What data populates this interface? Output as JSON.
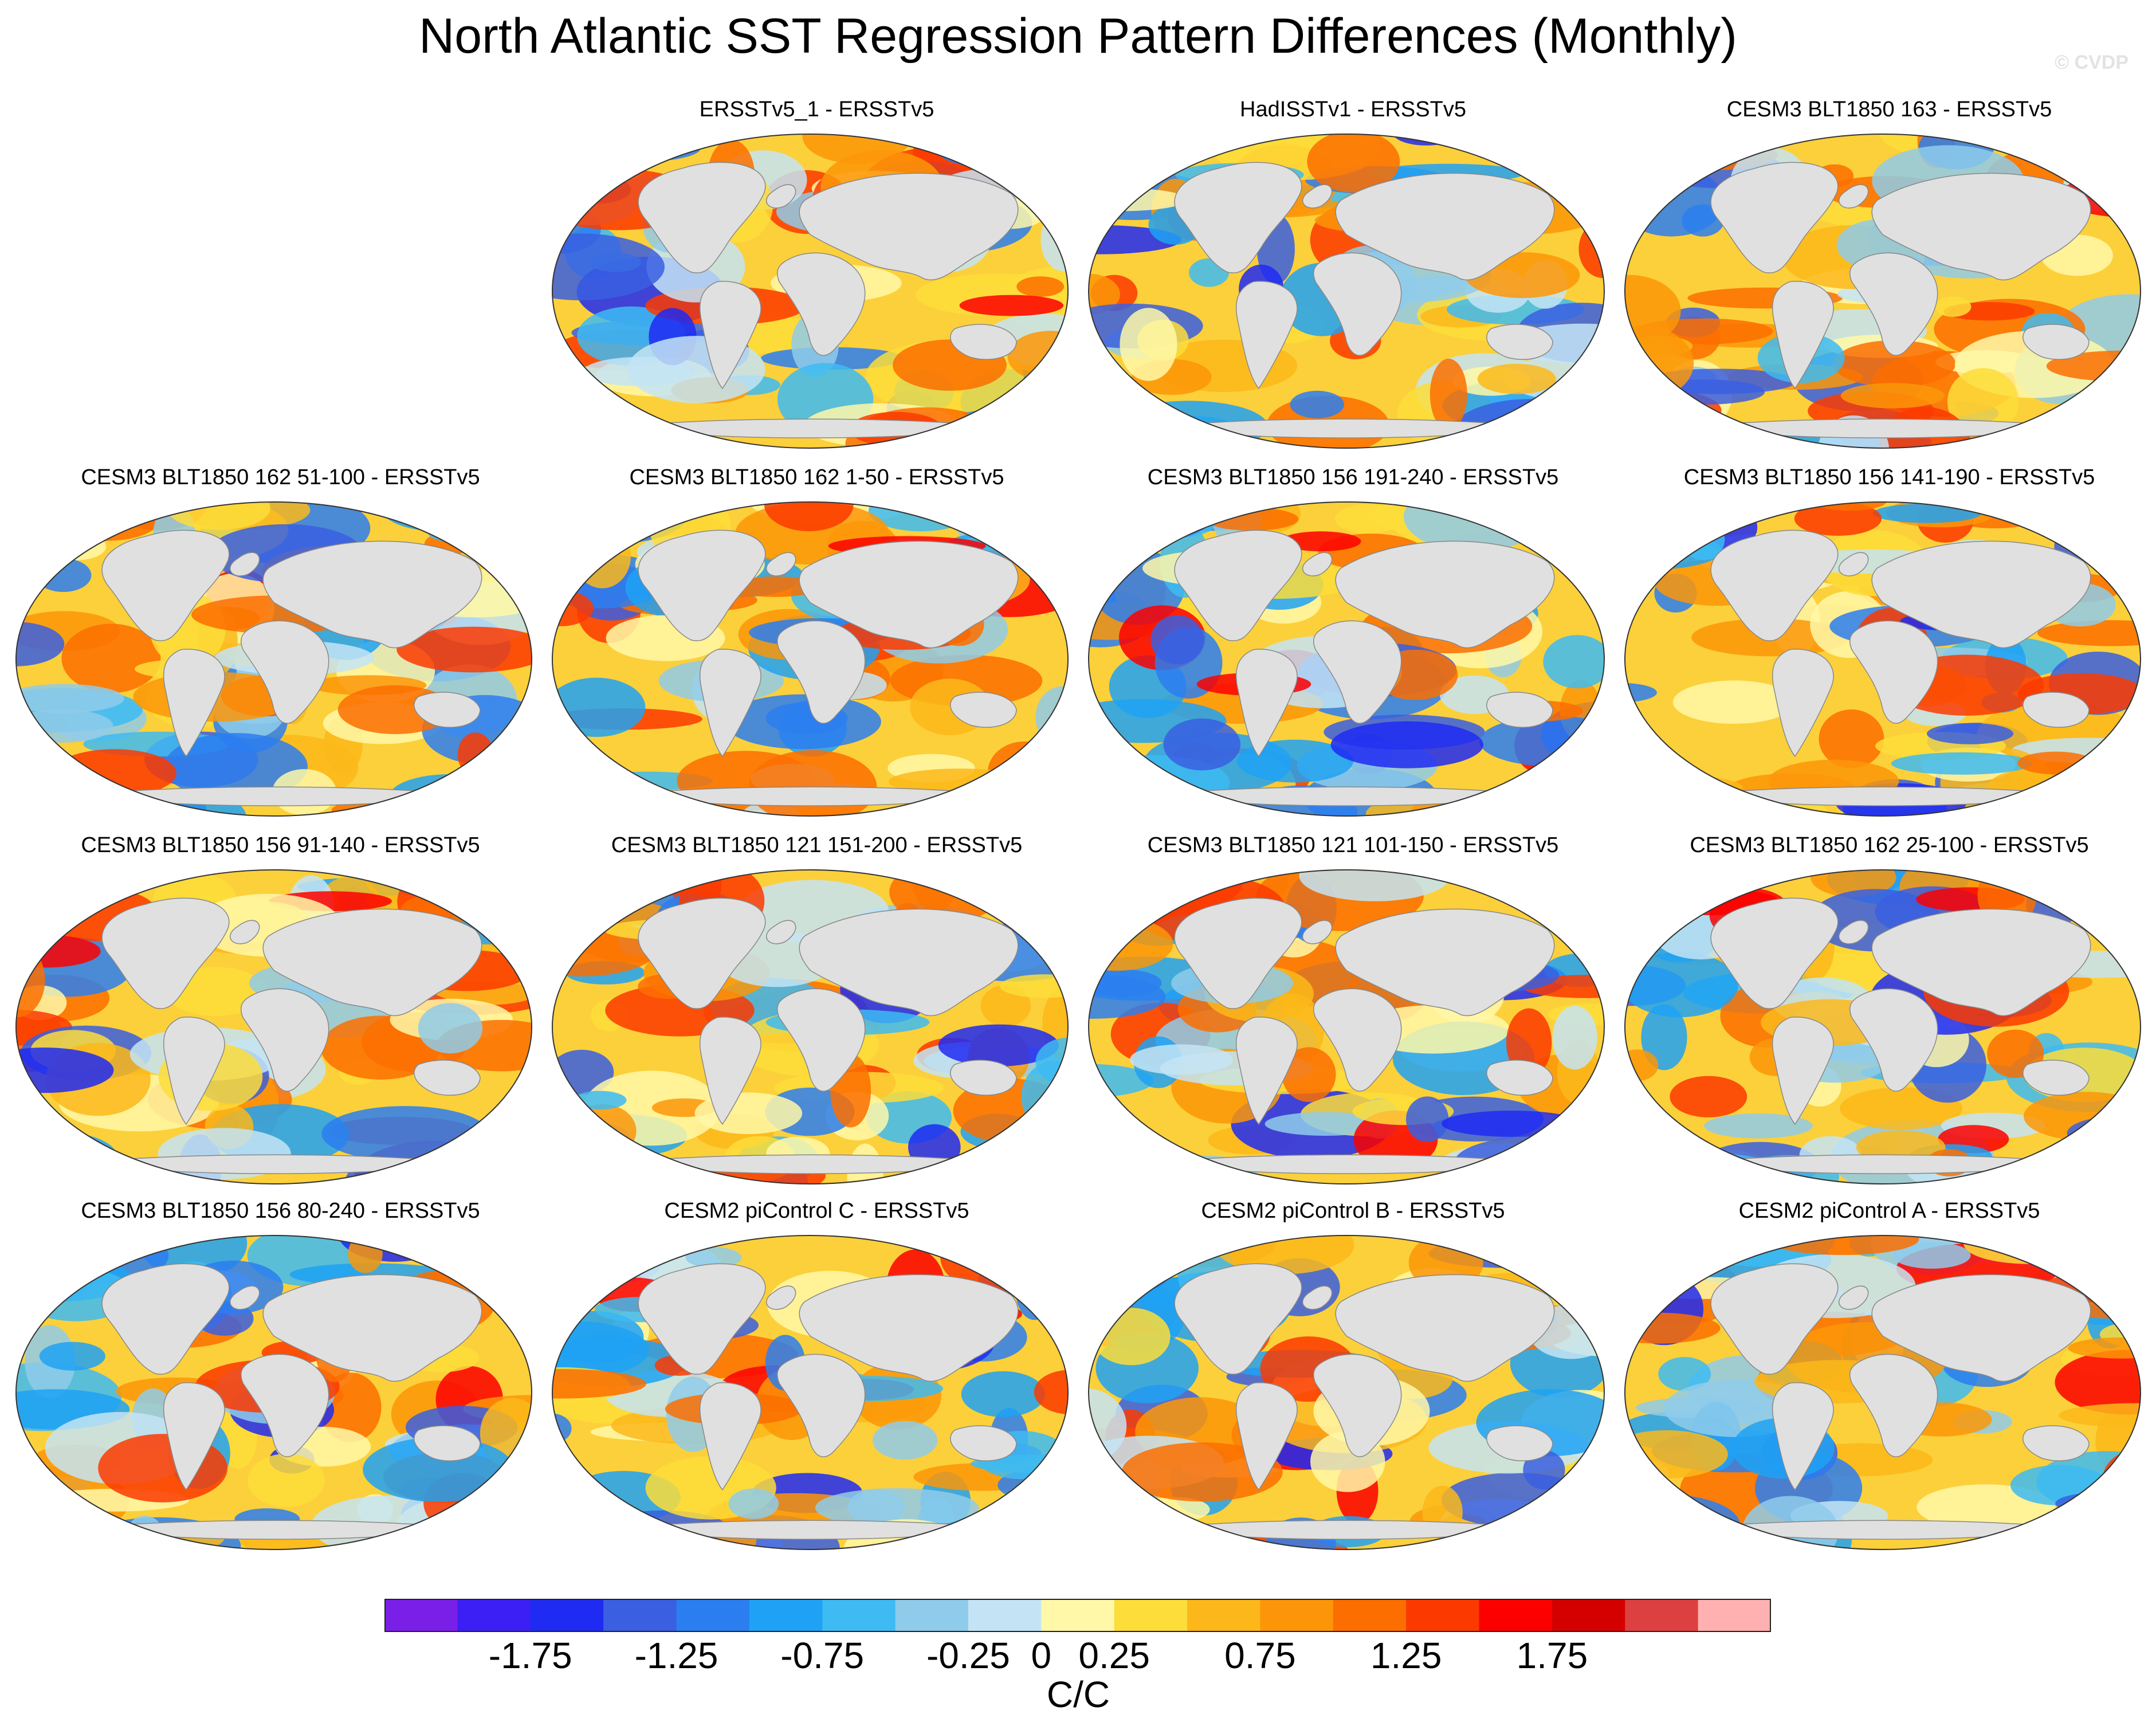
{
  "title": "North Atlantic SST Regression Pattern Differences (Monthly)",
  "watermark": "© CVDP",
  "chart_data": {
    "type": "heatmap",
    "projection": "Robinson-like global map panels (contoured difference fields)",
    "variable": "SST regression pattern difference",
    "units": "C/C",
    "panels": [
      {
        "title": "ERSSTv5_1 - ERSSTv5",
        "row": 0,
        "col": 1
      },
      {
        "title": "HadISSTv1 - ERSSTv5",
        "row": 0,
        "col": 2
      },
      {
        "title": "CESM3 BLT1850 163 - ERSSTv5",
        "row": 0,
        "col": 3
      },
      {
        "title": "CESM3 BLT1850 162 51-100 - ERSSTv5",
        "row": 1,
        "col": 0
      },
      {
        "title": "CESM3 BLT1850 162 1-50 - ERSSTv5",
        "row": 1,
        "col": 1
      },
      {
        "title": "CESM3 BLT1850 156 191-240 - ERSSTv5",
        "row": 1,
        "col": 2
      },
      {
        "title": "CESM3 BLT1850 156 141-190 - ERSSTv5",
        "row": 1,
        "col": 3
      },
      {
        "title": "CESM3 BLT1850 156 91-140 - ERSSTv5",
        "row": 2,
        "col": 0
      },
      {
        "title": "CESM3 BLT1850 121 151-200 - ERSSTv5",
        "row": 2,
        "col": 1
      },
      {
        "title": "CESM3 BLT1850 121 101-150 - ERSSTv5",
        "row": 2,
        "col": 2
      },
      {
        "title": "CESM3 BLT1850 162 25-100 - ERSSTv5",
        "row": 2,
        "col": 3
      },
      {
        "title": "CESM3 BLT1850 156 80-240 - ERSSTv5",
        "row": 3,
        "col": 0
      },
      {
        "title": "CESM2 piControl C - ERSSTv5",
        "row": 3,
        "col": 1
      },
      {
        "title": "CESM2 piControl B - ERSSTv5",
        "row": 3,
        "col": 2
      },
      {
        "title": "CESM2 piControl A - ERSSTv5",
        "row": 3,
        "col": 3
      }
    ],
    "colorbar": {
      "label": "C/C",
      "colors": [
        "#7a1fe8",
        "#3b1ff5",
        "#1f2af2",
        "#3a5fe0",
        "#2b7ef0",
        "#1fa2f5",
        "#3dbbf2",
        "#8fcbea",
        "#c4e4f5",
        "#fff8a8",
        "#fddd3a",
        "#fcb81a",
        "#fc9608",
        "#fc6e00",
        "#fc3a00",
        "#fc0000",
        "#d40000",
        "#dd4040",
        "#ffb0b0"
      ],
      "ticks": [
        -1.75,
        -1.25,
        -0.75,
        -0.25,
        0,
        0.25,
        0.75,
        1.25,
        1.75
      ],
      "tick_labels": [
        "-1.75",
        "-1.25",
        "-0.75",
        "-0.25",
        "0",
        "0.25",
        "0.75",
        "1.25",
        "1.75"
      ]
    }
  }
}
